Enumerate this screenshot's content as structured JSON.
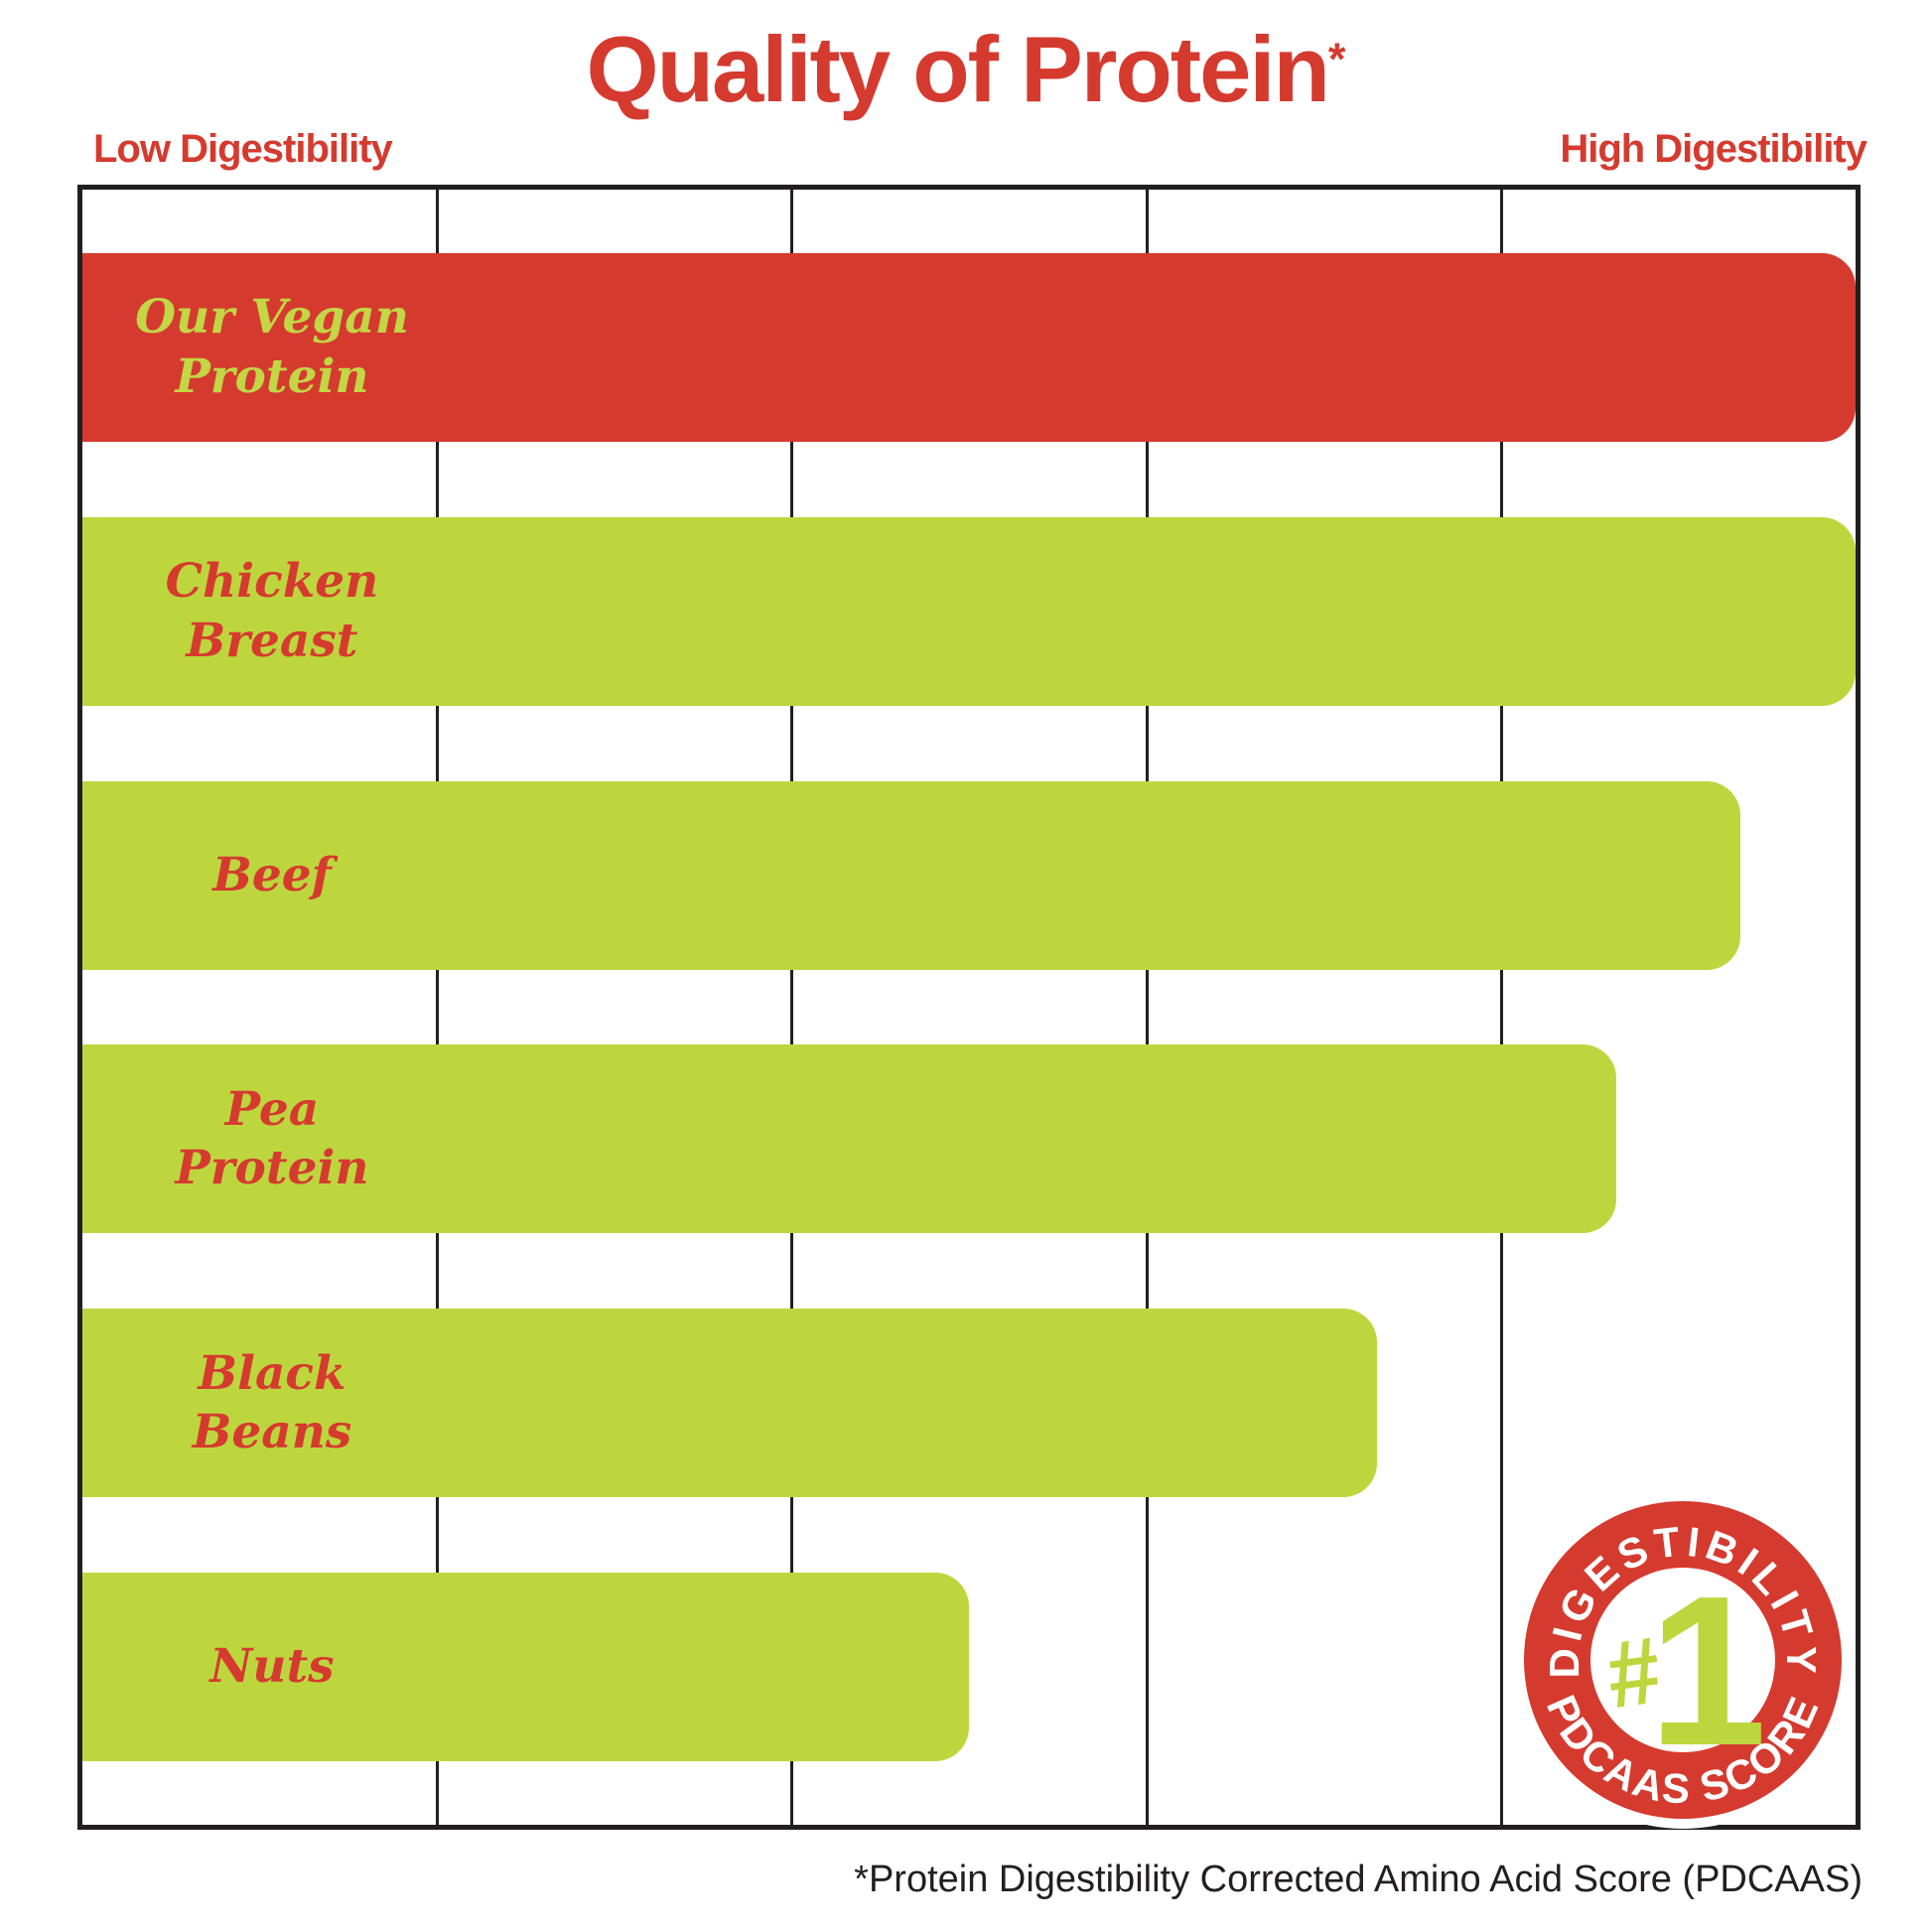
{
  "title": {
    "text": "Quality of Protein",
    "superscript": "*"
  },
  "axis_labels": {
    "low": "Low Digestibility",
    "high": "High Digestibility"
  },
  "colors": {
    "red": "#d53a2f",
    "green": "#bed63e",
    "label_red": "#d53a2f",
    "label_green": "#c3d645",
    "line": "#231f20",
    "text_dark": "#231f20"
  },
  "chart_data": {
    "type": "bar",
    "orientation": "horizontal",
    "title": "Quality of Protein*",
    "x_axis": {
      "left_label": "Low Digestibility",
      "right_label": "High Digestibility",
      "range_pct": [
        0,
        100
      ],
      "gridlines_pct": [
        20,
        40,
        60,
        80
      ],
      "grid": true
    },
    "categories": [
      "Our Vegan Protein",
      "Chicken Breast",
      "Beef",
      "Pea Protein",
      "Black Beans",
      "Nuts"
    ],
    "values_pct": [
      100,
      100,
      93.5,
      86.5,
      73,
      50
    ]
  },
  "bars": [
    {
      "line1": "Our Vegan",
      "line2": "Protein",
      "width_pct": 100,
      "color": "red",
      "label_color": "label_green"
    },
    {
      "line1": "Chicken",
      "line2": "Breast",
      "width_pct": 100,
      "color": "green",
      "label_color": "label_red"
    },
    {
      "line1": "Beef",
      "line2": "",
      "width_pct": 93.5,
      "color": "green",
      "label_color": "label_red"
    },
    {
      "line1": "Pea",
      "line2": "Protein",
      "width_pct": 86.5,
      "color": "green",
      "label_color": "label_red"
    },
    {
      "line1": "Black",
      "line2": "Beans",
      "width_pct": 73,
      "color": "green",
      "label_color": "label_red"
    },
    {
      "line1": "Nuts",
      "line2": "",
      "width_pct": 50,
      "color": "green",
      "label_color": "label_red"
    }
  ],
  "badge": {
    "arc_top": "DIGESTIBILITY",
    "arc_bottom": "PDCAAS SCORE",
    "hash": "#",
    "number": "1"
  },
  "footnote": "*Protein Digestibility Corrected Amino Acid Score (PDCAAS)"
}
